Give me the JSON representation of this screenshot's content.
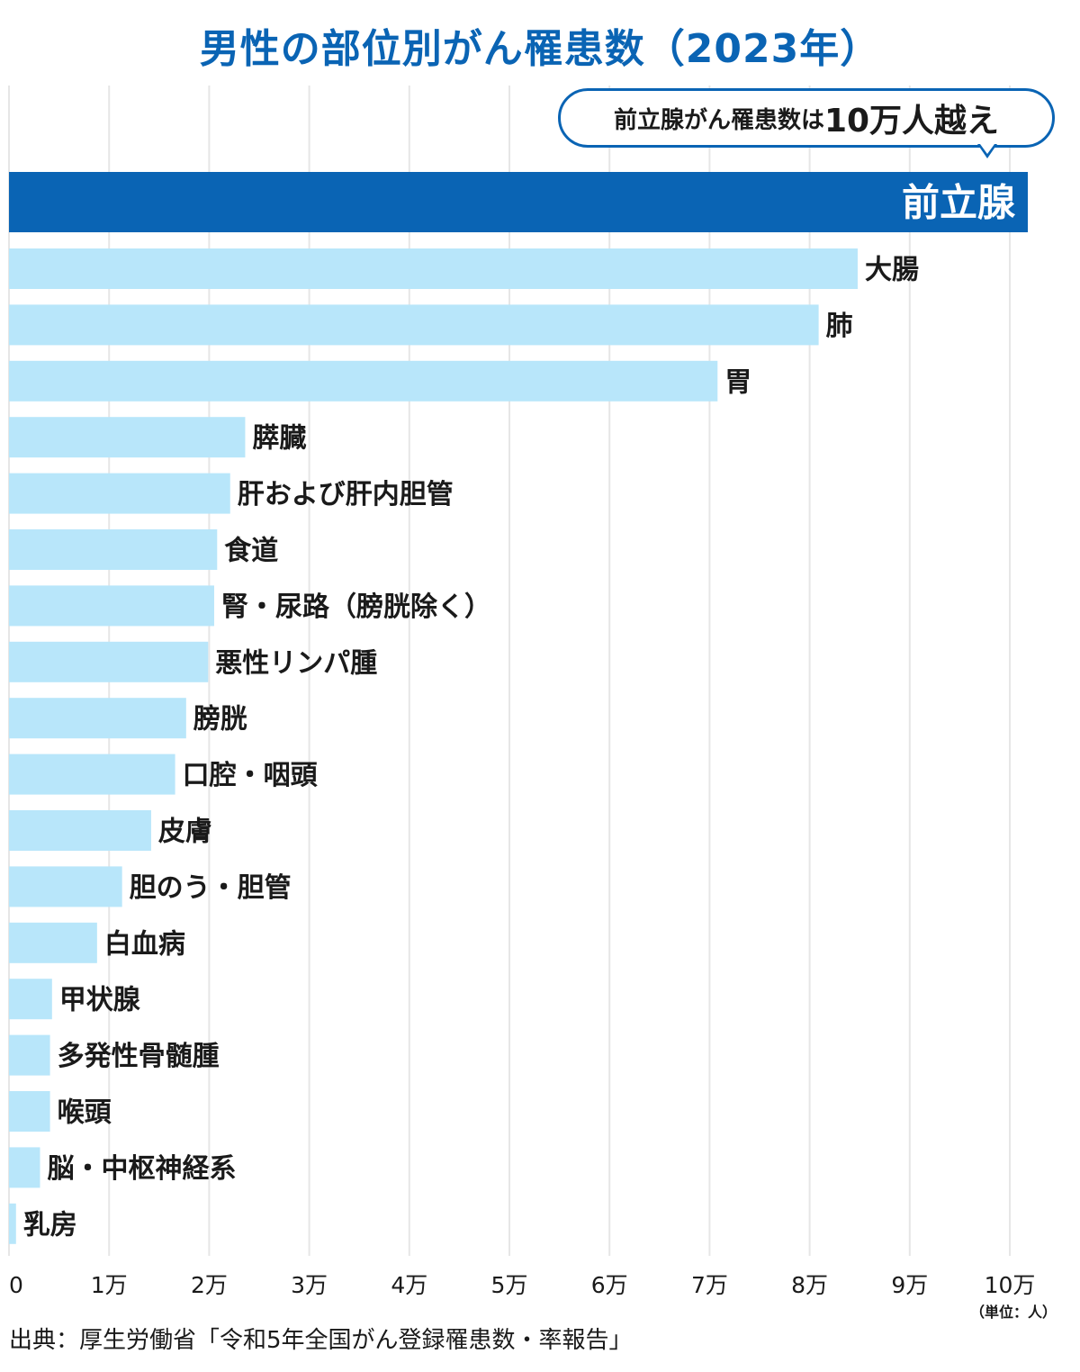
{
  "chart_data": {
    "type": "bar",
    "orientation": "horizontal",
    "title": "男性の部位別がん罹患数（2023年）",
    "categories": [
      "前立腺",
      "大腸",
      "肺",
      "胃",
      "膵臓",
      "肝および肝内胆管",
      "食道",
      "腎・尿路（膀胱除く）",
      "悪性リンパ腫",
      "膀胱",
      "口腔・咽頭",
      "皮膚",
      "胆のう・胆管",
      "白血病",
      "甲状腺",
      "多発性骨髄腫",
      "喉頭",
      "脳・中枢神経系",
      "乳房"
    ],
    "values": [
      101800,
      84800,
      80900,
      70800,
      23600,
      22100,
      20800,
      20500,
      19900,
      17700,
      16600,
      14200,
      11300,
      8800,
      4300,
      4100,
      4100,
      3100,
      700
    ],
    "highlight_index": 0,
    "xlim": [
      0,
      110000
    ],
    "x_ticks": [
      "0",
      "1万",
      "2万",
      "3万",
      "4万",
      "5万",
      "6万",
      "7万",
      "8万",
      "9万",
      "10万"
    ],
    "grid": true,
    "unit": "（単位：人）",
    "colors": {
      "highlight": "#0a64b4",
      "bar": "#b8e6fa",
      "grid": "#e6e6e6"
    },
    "callout": {
      "prefix": "前立腺がん罹患数は",
      "emphasis": "10万人越え"
    }
  },
  "source": "出典：厚生労働省「令和5年全国がん登録罹患数・率報告」"
}
